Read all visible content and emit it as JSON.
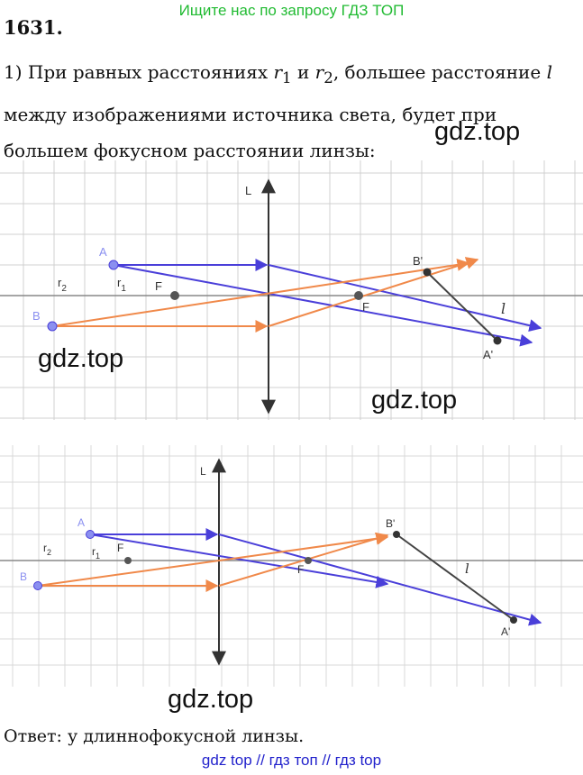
{
  "banner": "Ищите нас по запросу ГДЗ ТОП",
  "task_number": "1631.",
  "statement": {
    "prefix": "1) При равных расстояниях ",
    "r1": "r",
    "r1_sub": "1",
    "and": " и ",
    "r2": "r",
    "r2_sub": "2",
    "middle": ", большее расстояние ",
    "l": "l",
    "suffix": " между изображениями источника света, будет при большем фокусном расстоянии линзы:"
  },
  "watermark": "gdz.top",
  "figure1": {
    "labels": {
      "lens": "L",
      "A": "A",
      "B": "B",
      "A_img": "A'",
      "B_img": "B'",
      "F_left": "F",
      "F_right": "F",
      "r1": "r",
      "r1_sub": "1",
      "r2": "r",
      "r2_sub": "2",
      "l": "l"
    }
  },
  "figure2": {
    "labels": {
      "lens": "L",
      "A": "A",
      "B": "B",
      "A_img": "A'",
      "B_img": "B'",
      "F_left": "F",
      "F_right": "F",
      "r1": "r",
      "r1_sub": "1",
      "r2": "r",
      "r2_sub": "2",
      "l": "l"
    }
  },
  "answer": "Ответ:  у длиннофокусной линзы.",
  "footer": "gdz top  //  гдз топ  //  гдз top",
  "colors": {
    "blue_ray": "#4a3fd9",
    "orange_ray": "#f0894a",
    "point_blue": "#8a8ff0",
    "point_dark": "#444444",
    "grid": "#d0d0d0",
    "axis": "#888888",
    "banner": "#22bb33",
    "footer": "#2222cc"
  }
}
